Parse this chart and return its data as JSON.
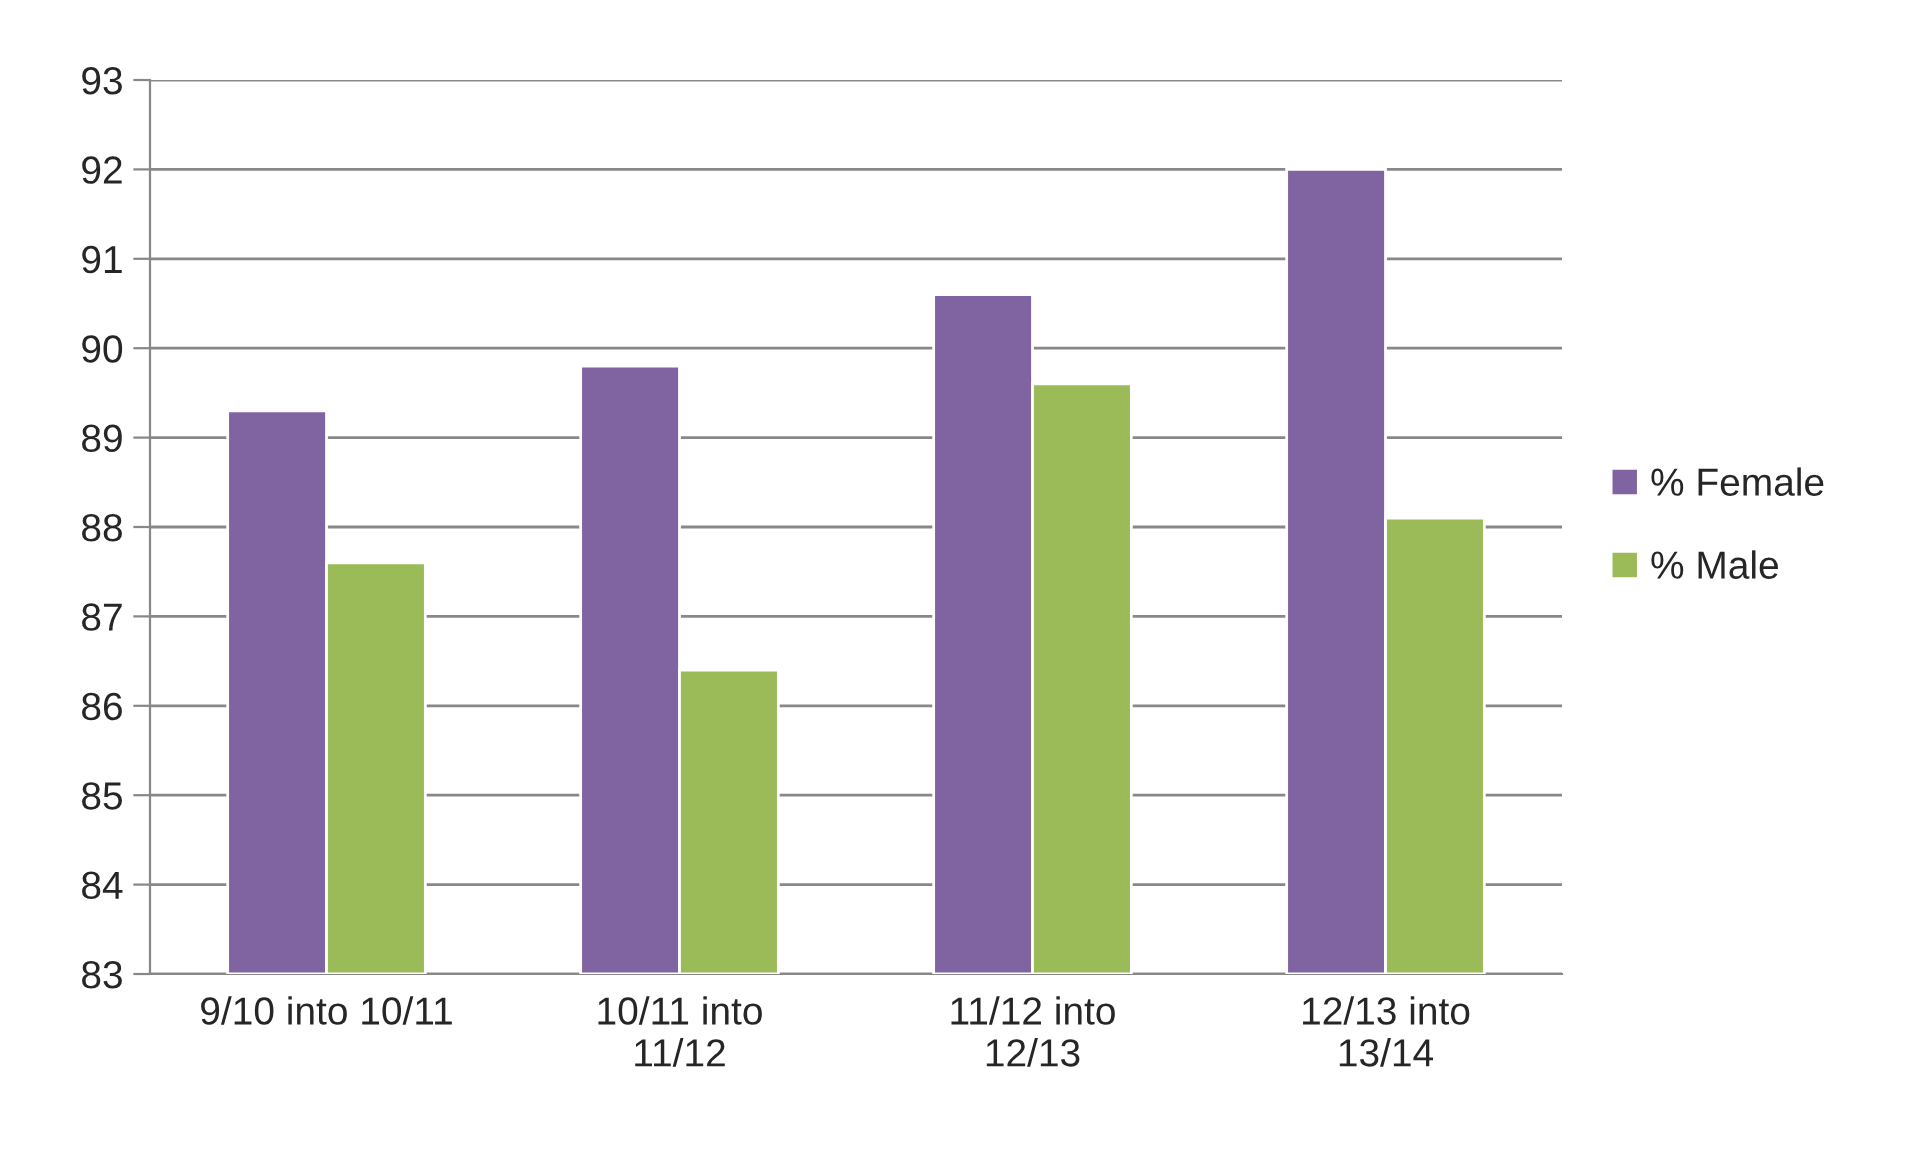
{
  "chart_data": {
    "type": "bar",
    "categories": [
      "9/10 into 10/11",
      "10/11 into\n11/12",
      "11/12 into\n12/13",
      "12/13 into\n13/14"
    ],
    "series": [
      {
        "name": "% Female",
        "color": "#8064a2",
        "values": [
          89.3,
          89.8,
          90.6,
          92.0
        ]
      },
      {
        "name": "% Male",
        "color": "#9bbb59",
        "values": [
          87.6,
          86.4,
          89.6,
          88.1
        ]
      }
    ],
    "ylim": [
      83,
      93
    ],
    "yticks": [
      83,
      84,
      85,
      86,
      87,
      88,
      89,
      90,
      91,
      92,
      93
    ],
    "grid": "y",
    "legend": "right"
  }
}
